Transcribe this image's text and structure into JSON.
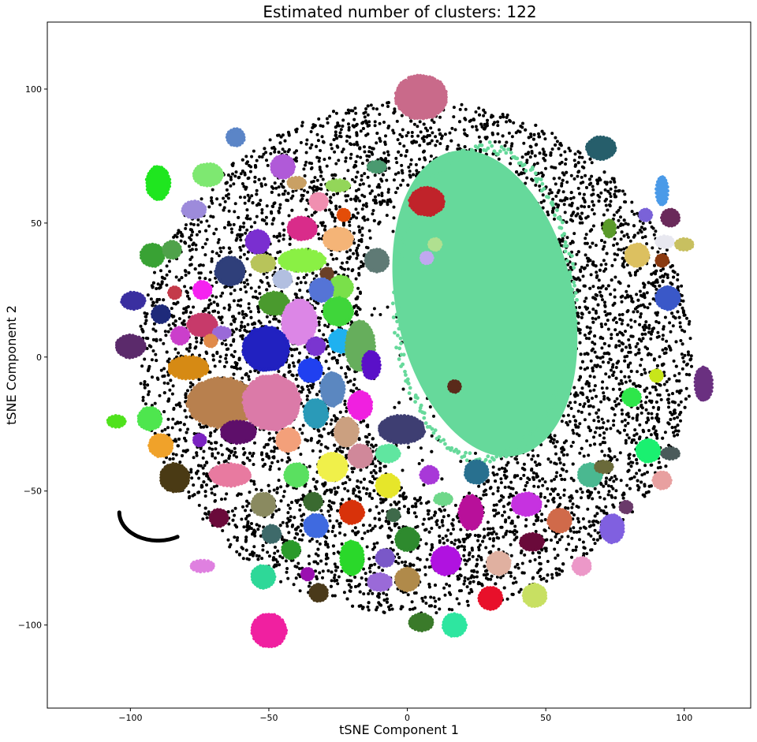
{
  "chart_data": {
    "type": "scatter",
    "title": "Estimated number of clusters: 122",
    "xlabel": "tSNE Component 1",
    "ylabel": "tSNE Component 2",
    "xlim": [
      -130,
      124
    ],
    "ylim": [
      -131,
      125
    ],
    "xticks": [
      -100,
      -50,
      0,
      50,
      100
    ],
    "yticks": [
      -100,
      -50,
      0,
      50,
      100
    ],
    "noise_color": "#000000",
    "noise_cloud": {
      "center": [
        3,
        0
      ],
      "radius_x": 100,
      "radius_y": 96
    },
    "inner_void": {
      "center": [
        12,
        8
      ],
      "radius_x": 30,
      "radius_y": 62
    },
    "curve_arc": {
      "center": [
        -90,
        -58
      ],
      "radius": 14,
      "start_deg": 180,
      "end_deg": 300
    },
    "clusters": [
      {
        "label": "large-central",
        "color": "#66d99b",
        "shape": "blob",
        "x": 28,
        "y": 20,
        "rx": 32,
        "ry": 58
      },
      {
        "label": "top-circle",
        "color": "#c96a8a",
        "x": 5,
        "y": 97,
        "rx": 9,
        "ry": 8
      },
      {
        "label": "dark-red",
        "color": "#c0232a",
        "x": 7,
        "y": 58,
        "rx": 6,
        "ry": 5
      },
      {
        "label": "teal-streak-top-right",
        "color": "#265e6b",
        "x": 70,
        "y": 78,
        "rx": 5,
        "ry": 4
      },
      {
        "label": "gray-slate",
        "color": "#5f7a75",
        "x": -11,
        "y": 36,
        "rx": 4,
        "ry": 4
      },
      {
        "label": "blue-small-top",
        "color": "#5b85c7",
        "x": -62,
        "y": 82,
        "rx": 3,
        "ry": 3
      },
      {
        "label": "green-streak-left",
        "color": "#1fe61f",
        "x": -90,
        "y": 65,
        "rx": 4,
        "ry": 6
      },
      {
        "label": "light-green-top",
        "color": "#7ee871",
        "x": -72,
        "y": 68,
        "rx": 5,
        "ry": 4
      },
      {
        "label": "lilac",
        "color": "#9d8bdb",
        "x": -77,
        "y": 55,
        "rx": 4,
        "ry": 3
      },
      {
        "label": "violet-small",
        "color": "#b05ad8",
        "x": -45,
        "y": 71,
        "rx": 4,
        "ry": 4
      },
      {
        "label": "tan-small",
        "color": "#c9a064",
        "x": -40,
        "y": 65,
        "rx": 3,
        "ry": 2
      },
      {
        "label": "lime-small",
        "color": "#93d659",
        "x": -25,
        "y": 64,
        "rx": 4,
        "ry": 2
      },
      {
        "label": "pink-small",
        "color": "#f08fb0",
        "x": -32,
        "y": 58,
        "rx": 3,
        "ry": 3
      },
      {
        "label": "orange-red-small",
        "color": "#e34d09",
        "x": -23,
        "y": 53,
        "rx": 2,
        "ry": 2
      },
      {
        "label": "magenta-pink",
        "color": "#d92c8a",
        "x": -38,
        "y": 48,
        "rx": 5,
        "ry": 4
      },
      {
        "label": "peach",
        "color": "#f4b477",
        "x": -25,
        "y": 44,
        "rx": 5,
        "ry": 4
      },
      {
        "label": "purple",
        "color": "#7a2fd0",
        "x": -54,
        "y": 43,
        "rx": 4,
        "ry": 4
      },
      {
        "label": "green-mid-left",
        "color": "#39a234",
        "x": -92,
        "y": 38,
        "rx": 4,
        "ry": 4
      },
      {
        "label": "green-small-left",
        "color": "#4fa24a",
        "x": -85,
        "y": 40,
        "rx": 3,
        "ry": 3
      },
      {
        "label": "chartreuse-large",
        "color": "#8af044",
        "x": -38,
        "y": 36,
        "rx": 8,
        "ry": 4
      },
      {
        "label": "olive-yellow",
        "color": "#b8c45a",
        "x": -52,
        "y": 35,
        "rx": 4,
        "ry": 3
      },
      {
        "label": "navy-slate",
        "color": "#2f3f7a",
        "x": -64,
        "y": 32,
        "rx": 5,
        "ry": 5
      },
      {
        "label": "light-steel",
        "color": "#b2bfe0",
        "x": -45,
        "y": 29,
        "rx": 3,
        "ry": 3
      },
      {
        "label": "brown-small",
        "color": "#6a4028",
        "x": -29,
        "y": 31,
        "rx": 2,
        "ry": 2
      },
      {
        "label": "light-green",
        "color": "#7ae04a",
        "x": -24,
        "y": 26,
        "rx": 4,
        "ry": 4
      },
      {
        "label": "cornflower",
        "color": "#5574d6",
        "x": -31,
        "y": 25,
        "rx": 4,
        "ry": 4
      },
      {
        "label": "magenta-bright",
        "color": "#f522f0",
        "x": -74,
        "y": 25,
        "rx": 3,
        "ry": 3
      },
      {
        "label": "red-small-left",
        "color": "#c43a4a",
        "x": -84,
        "y": 24,
        "rx": 2,
        "ry": 2
      },
      {
        "label": "indigo-left",
        "color": "#3a2fa0",
        "x": -99,
        "y": 21,
        "rx": 4,
        "ry": 3
      },
      {
        "label": "forest-green",
        "color": "#4a9a2e",
        "x": -48,
        "y": 20,
        "rx": 5,
        "ry": 4
      },
      {
        "label": "green-bright",
        "color": "#3fd63a",
        "x": -25,
        "y": 17,
        "rx": 5,
        "ry": 5
      },
      {
        "label": "dark-navy",
        "color": "#1e2a7a",
        "x": -89,
        "y": 16,
        "rx": 3,
        "ry": 3
      },
      {
        "label": "orchid-light",
        "color": "#dc86e6",
        "x": -39,
        "y": 13,
        "rx": 6,
        "ry": 8
      },
      {
        "label": "crimson-pink",
        "color": "#c73a6a",
        "x": -74,
        "y": 12,
        "rx": 5,
        "ry": 4
      },
      {
        "label": "lavender",
        "color": "#9a6ad8",
        "x": -67,
        "y": 9,
        "rx": 3,
        "ry": 2
      },
      {
        "label": "orchid",
        "color": "#cb3fcb",
        "x": -82,
        "y": 8,
        "rx": 3,
        "ry": 3
      },
      {
        "label": "salmon-orange",
        "color": "#e08a4a",
        "x": -71,
        "y": 6,
        "rx": 2,
        "ry": 2
      },
      {
        "label": "royal-blue",
        "color": "#2121c0",
        "x": -51,
        "y": 3,
        "rx": 8,
        "ry": 8
      },
      {
        "label": "sky-blue",
        "color": "#1fb1f0",
        "x": -24,
        "y": 6,
        "rx": 4,
        "ry": 4
      },
      {
        "label": "violet",
        "color": "#7a35d0",
        "x": -33,
        "y": 4,
        "rx": 3,
        "ry": 3
      },
      {
        "label": "sage-green",
        "color": "#66ae5c",
        "x": -17,
        "y": 4,
        "rx": 5,
        "ry": 9
      },
      {
        "label": "deep-violet",
        "color": "#5a10c8",
        "x": -13,
        "y": -3,
        "rx": 3,
        "ry": 5
      },
      {
        "label": "plum-left",
        "color": "#5b2a6b",
        "x": -100,
        "y": 4,
        "rx": 5,
        "ry": 4
      },
      {
        "label": "amber",
        "color": "#d68a14",
        "x": -79,
        "y": -4,
        "rx": 7,
        "ry": 4
      },
      {
        "label": "blue-bright",
        "color": "#2040f0",
        "x": -35,
        "y": -5,
        "rx": 4,
        "ry": 4
      },
      {
        "label": "steel-blue",
        "color": "#5b87c0",
        "x": -27,
        "y": -12,
        "rx": 4,
        "ry": 6
      },
      {
        "label": "brown-tan-large",
        "color": "#b8804e",
        "x": -67,
        "y": -17,
        "rx": 12,
        "ry": 9
      },
      {
        "label": "pink-large",
        "color": "#db7aa8",
        "x": -49,
        "y": -17,
        "rx": 10,
        "ry": 10
      },
      {
        "label": "teal-blue",
        "color": "#2a9ab8",
        "x": -33,
        "y": -21,
        "rx": 4,
        "ry": 5
      },
      {
        "label": "magenta-hot",
        "color": "#f020e0",
        "x": -17,
        "y": -18,
        "rx": 4,
        "ry": 5
      },
      {
        "label": "tan-beige",
        "color": "#cba080",
        "x": -22,
        "y": -28,
        "rx": 4,
        "ry": 5
      },
      {
        "label": "slate-navy",
        "color": "#3e3e72",
        "x": -2,
        "y": -27,
        "rx": 8,
        "ry": 5
      },
      {
        "label": "green-left-mid",
        "color": "#4ee64e",
        "x": -93,
        "y": -23,
        "rx": 4,
        "ry": 4
      },
      {
        "label": "green-bright-left",
        "color": "#4fe21c",
        "x": -105,
        "y": -24,
        "rx": 3,
        "ry": 2
      },
      {
        "label": "purple-dark",
        "color": "#5e0f6a",
        "x": -61,
        "y": -28,
        "rx": 6,
        "ry": 4
      },
      {
        "label": "violet-small2",
        "color": "#7a22c0",
        "x": -75,
        "y": -31,
        "rx": 2,
        "ry": 2
      },
      {
        "label": "salmon",
        "color": "#f3a07a",
        "x": -43,
        "y": -31,
        "rx": 4,
        "ry": 4
      },
      {
        "label": "gold-orange",
        "color": "#f0a22a",
        "x": -89,
        "y": -33,
        "rx": 4,
        "ry": 4
      },
      {
        "label": "mint",
        "color": "#60e6a0",
        "x": -7,
        "y": -36,
        "rx": 4,
        "ry": 3
      },
      {
        "label": "pink-mauve",
        "color": "#d0889a",
        "x": -17,
        "y": -37,
        "rx": 4,
        "ry": 4
      },
      {
        "label": "yellow-bright",
        "color": "#f0f04a",
        "x": -27,
        "y": -41,
        "rx": 5,
        "ry": 5
      },
      {
        "label": "pink-rose",
        "color": "#e87aa0",
        "x": -64,
        "y": -44,
        "rx": 7,
        "ry": 4
      },
      {
        "label": "olive-dark",
        "color": "#4a3a14",
        "x": -84,
        "y": -45,
        "rx": 5,
        "ry": 5
      },
      {
        "label": "green-mint-mid",
        "color": "#5ae060",
        "x": -40,
        "y": -44,
        "rx": 4,
        "ry": 4
      },
      {
        "label": "yellow",
        "color": "#e6e62a",
        "x": -7,
        "y": -48,
        "rx": 4,
        "ry": 4
      },
      {
        "label": "violet-mid",
        "color": "#a838d8",
        "x": 8,
        "y": -44,
        "rx": 3,
        "ry": 3
      },
      {
        "label": "teal-dark",
        "color": "#28708f",
        "x": 25,
        "y": -43,
        "rx": 4,
        "ry": 4
      },
      {
        "label": "olive-khaki",
        "color": "#8a8a60",
        "x": -52,
        "y": -55,
        "rx": 4,
        "ry": 4
      },
      {
        "label": "green-dark-small",
        "color": "#3a6a30",
        "x": -34,
        "y": -54,
        "rx": 3,
        "ry": 3
      },
      {
        "label": "red-orange",
        "color": "#d8320a",
        "x": -20,
        "y": -58,
        "rx": 4,
        "ry": 4
      },
      {
        "label": "green-pale-small",
        "color": "#6fd88a",
        "x": 13,
        "y": -53,
        "rx": 3,
        "ry": 2
      },
      {
        "label": "magenta-dark",
        "color": "#b8109a",
        "x": 23,
        "y": -58,
        "rx": 4,
        "ry": 6
      },
      {
        "label": "violet-pink",
        "color": "#c632e0",
        "x": 43,
        "y": -55,
        "rx": 5,
        "ry": 4
      },
      {
        "label": "dark-green-small",
        "color": "#3e6a4a",
        "x": -5,
        "y": -59,
        "rx": 2,
        "ry": 2
      },
      {
        "label": "maroon-small",
        "color": "#6a0a3a",
        "x": -68,
        "y": -60,
        "rx": 3,
        "ry": 3
      },
      {
        "label": "blue-mid",
        "color": "#3f6ae0",
        "x": -33,
        "y": -63,
        "rx": 4,
        "ry": 4
      },
      {
        "label": "slate-teal",
        "color": "#3e6a6a",
        "x": -49,
        "y": -66,
        "rx": 3,
        "ry": 3
      },
      {
        "label": "forest-small",
        "color": "#2e8a2e",
        "x": 0,
        "y": -68,
        "rx": 4,
        "ry": 4
      },
      {
        "label": "rust",
        "color": "#d06a4a",
        "x": 55,
        "y": -61,
        "rx": 4,
        "ry": 4
      },
      {
        "label": "periwinkle",
        "color": "#8060e0",
        "x": 74,
        "y": -64,
        "rx": 4,
        "ry": 5
      },
      {
        "label": "maroon",
        "color": "#6a0a3a",
        "x": 45,
        "y": -69,
        "rx": 4,
        "ry": 3
      },
      {
        "label": "green-small-bottom",
        "color": "#2a9a2a",
        "x": -42,
        "y": -72,
        "rx": 3,
        "ry": 3
      },
      {
        "label": "green-bright-bottom",
        "color": "#2ad82a",
        "x": -20,
        "y": -75,
        "rx": 4,
        "ry": 6
      },
      {
        "label": "lavender-blue",
        "color": "#7a58c8",
        "x": -8,
        "y": -75,
        "rx": 3,
        "ry": 3
      },
      {
        "label": "violet-bright",
        "color": "#b012e0",
        "x": 14,
        "y": -76,
        "rx": 5,
        "ry": 5
      },
      {
        "label": "blush",
        "color": "#e0b0a0",
        "x": 33,
        "y": -77,
        "rx": 4,
        "ry": 4
      },
      {
        "label": "pink-light",
        "color": "#ec98c8",
        "x": 63,
        "y": -78,
        "rx": 3,
        "ry": 3
      },
      {
        "label": "lavender-pink",
        "color": "#df80e0",
        "x": -74,
        "y": -78,
        "rx": 4,
        "ry": 2
      },
      {
        "label": "teal-green",
        "color": "#2ed898",
        "x": -52,
        "y": -82,
        "rx": 4,
        "ry": 4
      },
      {
        "label": "purple-small-bottom",
        "color": "#9a10b0",
        "x": -36,
        "y": -81,
        "rx": 2,
        "ry": 2
      },
      {
        "label": "lilac-bottom",
        "color": "#9a6ad8",
        "x": -10,
        "y": -84,
        "rx": 4,
        "ry": 3
      },
      {
        "label": "khaki-brown",
        "color": "#b08a4a",
        "x": 0,
        "y": -83,
        "rx": 4,
        "ry": 4
      },
      {
        "label": "brown-dark",
        "color": "#4a3a1a",
        "x": -32,
        "y": -88,
        "rx": 3,
        "ry": 3
      },
      {
        "label": "red-bright",
        "color": "#e8102a",
        "x": 30,
        "y": -90,
        "rx": 4,
        "ry": 4
      },
      {
        "label": "yellow-green",
        "color": "#c8e062",
        "x": 46,
        "y": -89,
        "rx": 4,
        "ry": 4
      },
      {
        "label": "green-olive-bottom",
        "color": "#3a7a2a",
        "x": 5,
        "y": -99,
        "rx": 4,
        "ry": 3
      },
      {
        "label": "aquamarine",
        "color": "#2ee6a0",
        "x": 17,
        "y": -100,
        "rx": 4,
        "ry": 4
      },
      {
        "label": "hot-pink",
        "color": "#f020a0",
        "x": -50,
        "y": -102,
        "rx": 6,
        "ry": 6
      },
      {
        "label": "light-blue-streak",
        "color": "#4a9ae8",
        "x": 92,
        "y": 62,
        "rx": 2,
        "ry": 5
      },
      {
        "label": "violet-right",
        "color": "#7a62d8",
        "x": 86,
        "y": 53,
        "rx": 2,
        "ry": 2
      },
      {
        "label": "plum-right",
        "color": "#6a2a5a",
        "x": 95,
        "y": 52,
        "rx": 3,
        "ry": 3
      },
      {
        "label": "green-right-small",
        "color": "#5a9a2a",
        "x": 73,
        "y": 48,
        "rx": 2,
        "ry": 3
      },
      {
        "label": "white-gray",
        "color": "#e8e8f0",
        "x": 93,
        "y": 43,
        "rx": 3,
        "ry": 2
      },
      {
        "label": "khaki-right",
        "color": "#c8c060",
        "x": 100,
        "y": 42,
        "rx": 3,
        "ry": 2
      },
      {
        "label": "gold-right",
        "color": "#dcc060",
        "x": 83,
        "y": 38,
        "rx": 4,
        "ry": 4
      },
      {
        "label": "rust-small-right",
        "color": "#8a3a10",
        "x": 92,
        "y": 36,
        "rx": 2,
        "ry": 2
      },
      {
        "label": "royal-right",
        "color": "#3a58c8",
        "x": 94,
        "y": 22,
        "rx": 4,
        "ry": 4
      },
      {
        "label": "purple-far-right",
        "color": "#6a3080",
        "x": 107,
        "y": -10,
        "rx": 3,
        "ry": 6
      },
      {
        "label": "lime-yellow-right",
        "color": "#c8e61a",
        "x": 90,
        "y": -7,
        "rx": 2,
        "ry": 2
      },
      {
        "label": "green-right",
        "color": "#2ee64a",
        "x": 81,
        "y": -15,
        "rx": 3,
        "ry": 3
      },
      {
        "label": "green-spring-right",
        "color": "#1af070",
        "x": 87,
        "y": -35,
        "rx": 4,
        "ry": 4
      },
      {
        "label": "slate-gray-streak",
        "color": "#4a5a5a",
        "x": 95,
        "y": -36,
        "rx": 3,
        "ry": 2
      },
      {
        "label": "sea-green",
        "color": "#4ab890",
        "x": 66,
        "y": -44,
        "rx": 4,
        "ry": 4
      },
      {
        "label": "olive-gray",
        "color": "#6a6a3a",
        "x": 71,
        "y": -41,
        "rx": 3,
        "ry": 2
      },
      {
        "label": "rose-light",
        "color": "#e8a0a0",
        "x": 92,
        "y": -46,
        "rx": 3,
        "ry": 3
      },
      {
        "label": "plum-small-right",
        "color": "#6a3a6a",
        "x": 79,
        "y": -56,
        "rx": 2,
        "ry": 2
      },
      {
        "label": "dark-brown-small",
        "color": "#5a2a1a",
        "x": 17,
        "y": -11,
        "rx": 2,
        "ry": 2
      },
      {
        "label": "light-lime-small",
        "color": "#b0e090",
        "x": 10,
        "y": 42,
        "rx": 2,
        "ry": 2
      },
      {
        "label": "lavender-small",
        "color": "#c0a8f0",
        "x": 7,
        "y": 37,
        "rx": 2,
        "ry": 2
      },
      {
        "label": "sea-green-small",
        "color": "#4a9a70",
        "x": -11,
        "y": 71,
        "rx": 3,
        "ry": 2
      }
    ]
  }
}
